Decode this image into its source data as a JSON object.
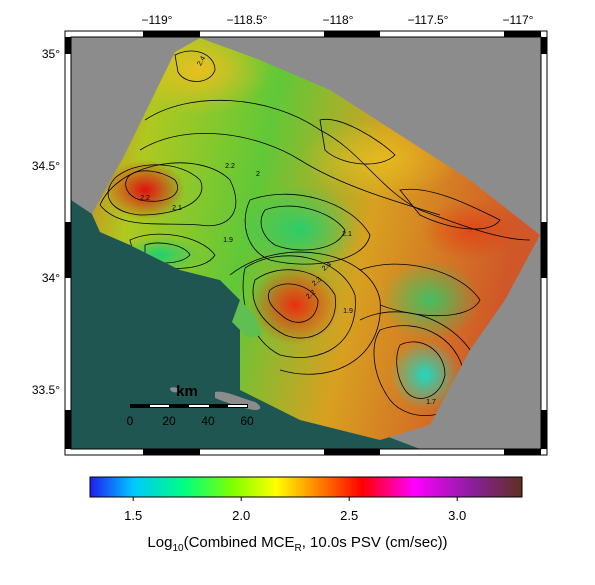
{
  "map": {
    "lon_labels": [
      "−119°",
      "−118.5°",
      "−118°",
      "−117.5°",
      "−117°"
    ],
    "lat_labels": [
      "35°",
      "34.5°",
      "34°",
      "33.5°"
    ],
    "contour_labels": [
      "2.4",
      "2.2",
      "2.1",
      "2",
      "1.9",
      "2.2",
      "2.4",
      "2.3",
      "2.2",
      "2.1",
      "1.9",
      "1.7"
    ],
    "colors": {
      "ocean": "#1f5652",
      "nodata": "#8c8c8c",
      "island": "#8c8c8c"
    }
  },
  "scale_bar": {
    "title": "km",
    "ticks": [
      "0",
      "20",
      "40",
      "60"
    ]
  },
  "colorbar": {
    "ticks": [
      "1.5",
      "2.0",
      "2.5",
      "3.0"
    ],
    "title_prefix": "Log",
    "title_sub1": "10",
    "title_mid": "(Combined MCE",
    "title_sub2": "R",
    "title_suffix": ", 10.0s PSV (cm/sec))",
    "range": [
      1.3,
      3.3
    ]
  }
}
